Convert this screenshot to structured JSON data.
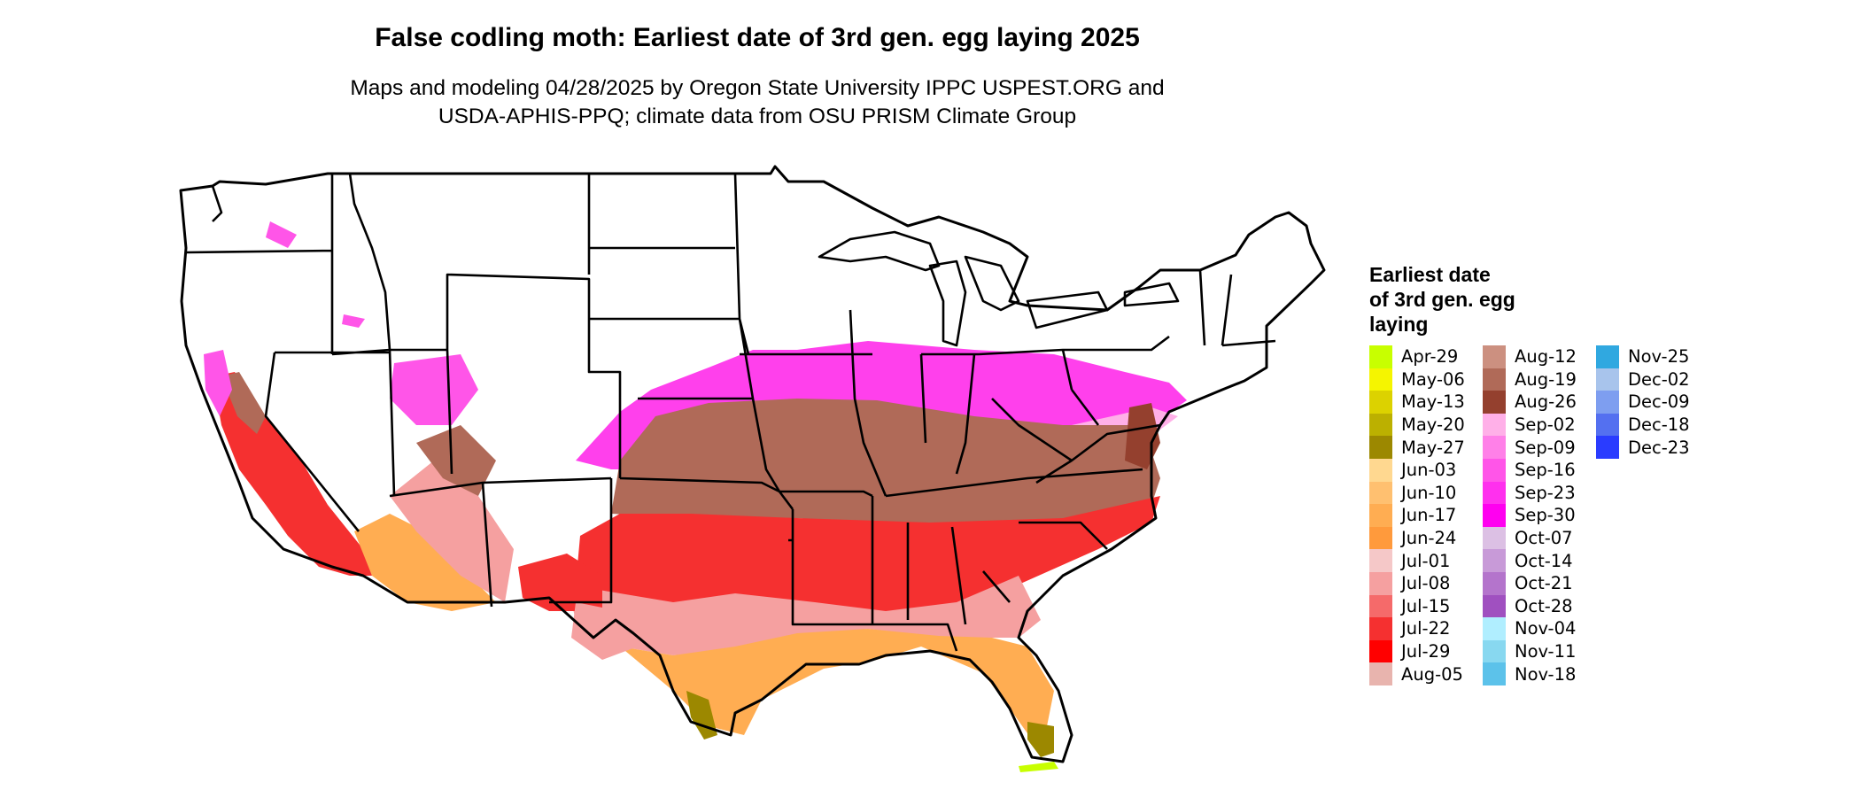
{
  "title": "False codling moth: Earliest date of 3rd gen. egg laying 2025",
  "subtitle_lines": [
    "Maps and modeling 04/28/2025 by Oregon State University IPPC USPEST.ORG and",
    "USDA-APHIS-PPQ; climate data from OSU PRISM Climate Group"
  ],
  "legend": {
    "title_lines": [
      "Earliest date",
      "of 3rd gen. egg",
      "laying"
    ],
    "columns": [
      [
        {
          "label": "Apr-29",
          "color": "#c8ff00"
        },
        {
          "label": "May-06",
          "color": "#f5f500"
        },
        {
          "label": "May-13",
          "color": "#dcd200"
        },
        {
          "label": "May-20",
          "color": "#bcb000"
        },
        {
          "label": "May-27",
          "color": "#9c8800"
        },
        {
          "label": "Jun-03",
          "color": "#ffd890"
        },
        {
          "label": "Jun-10",
          "color": "#ffc070"
        },
        {
          "label": "Jun-17",
          "color": "#ffad52"
        },
        {
          "label": "Jun-24",
          "color": "#ff9a3c"
        },
        {
          "label": "Jul-01",
          "color": "#f5c8c8"
        },
        {
          "label": "Jul-08",
          "color": "#f5a0a0"
        },
        {
          "label": "Jul-15",
          "color": "#f56a6a"
        },
        {
          "label": "Jul-22",
          "color": "#f53030"
        },
        {
          "label": "Jul-29",
          "color": "#ff0000"
        },
        {
          "label": "Aug-05",
          "color": "#e8b4ae"
        }
      ],
      [
        {
          "label": "Aug-12",
          "color": "#cc9080"
        },
        {
          "label": "Aug-19",
          "color": "#b06a58"
        },
        {
          "label": "Aug-26",
          "color": "#94402e"
        },
        {
          "label": "Sep-02",
          "color": "#ffb0e8"
        },
        {
          "label": "Sep-09",
          "color": "#ff80e8"
        },
        {
          "label": "Sep-16",
          "color": "#ff55e8"
        },
        {
          "label": "Sep-23",
          "color": "#ff30ee"
        },
        {
          "label": "Sep-30",
          "color": "#ff00f0"
        },
        {
          "label": "Oct-07",
          "color": "#dcc0e4"
        },
        {
          "label": "Oct-14",
          "color": "#c89ad8"
        },
        {
          "label": "Oct-21",
          "color": "#b474cc"
        },
        {
          "label": "Oct-28",
          "color": "#a050c0"
        },
        {
          "label": "Nov-04",
          "color": "#b0eeff"
        },
        {
          "label": "Nov-11",
          "color": "#88d8f0"
        },
        {
          "label": "Nov-18",
          "color": "#5cc2ea"
        }
      ],
      [
        {
          "label": "Nov-25",
          "color": "#30a8e0"
        },
        {
          "label": "Dec-02",
          "color": "#a8c4ec"
        },
        {
          "label": "Dec-09",
          "color": "#7e9ef0"
        },
        {
          "label": "Dec-18",
          "color": "#5470f0"
        },
        {
          "label": "Dec-23",
          "color": "#2a3cff"
        }
      ]
    ]
  },
  "map": {
    "border_color": "#000000",
    "no_data_color": "#ffffff"
  }
}
